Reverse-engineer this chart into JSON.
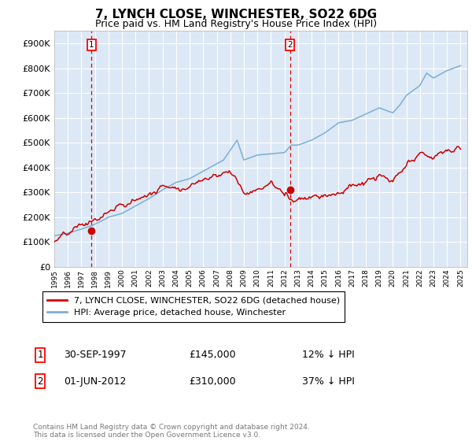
{
  "title": "7, LYNCH CLOSE, WINCHESTER, SO22 6DG",
  "subtitle": "Price paid vs. HM Land Registry's House Price Index (HPI)",
  "ylim": [
    0,
    950000
  ],
  "yticks": [
    0,
    100000,
    200000,
    300000,
    400000,
    500000,
    600000,
    700000,
    800000,
    900000
  ],
  "ytick_labels": [
    "£0",
    "£100K",
    "£200K",
    "£300K",
    "£400K",
    "£500K",
    "£600K",
    "£700K",
    "£800K",
    "£900K"
  ],
  "xlim_start": 1995.0,
  "xlim_end": 2025.5,
  "bg_color": "#dce8f5",
  "grid_color": "#ffffff",
  "line1_color": "#cc0000",
  "line2_color": "#7aafd4",
  "sale1_x": 1997.75,
  "sale1_y": 145000,
  "sale2_x": 2012.42,
  "sale2_y": 310000,
  "legend_line1": "7, LYNCH CLOSE, WINCHESTER, SO22 6DG (detached house)",
  "legend_line2": "HPI: Average price, detached house, Winchester",
  "ann1_label": "1",
  "ann1_date": "30-SEP-1997",
  "ann1_price": "£145,000",
  "ann1_hpi": "12% ↓ HPI",
  "ann2_label": "2",
  "ann2_date": "01-JUN-2012",
  "ann2_price": "£310,000",
  "ann2_hpi": "37% ↓ HPI",
  "footer": "Contains HM Land Registry data © Crown copyright and database right 2024.\nThis data is licensed under the Open Government Licence v3.0.",
  "title_fontsize": 11,
  "subtitle_fontsize": 9
}
